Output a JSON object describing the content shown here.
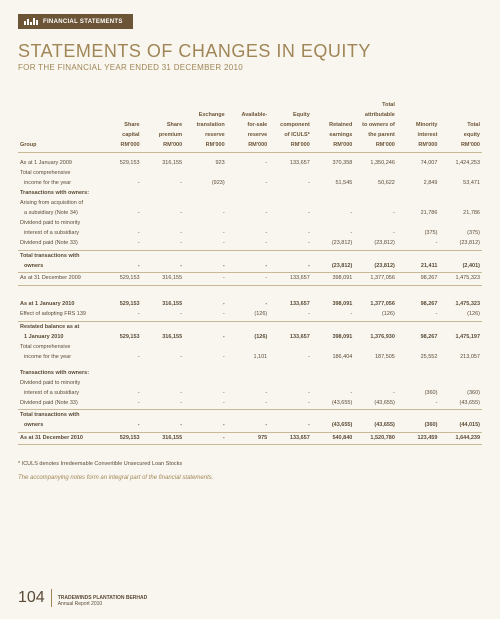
{
  "header": {
    "tab_label": "FINANCIAL STATEMENTS"
  },
  "title": "STATEMENTS OF CHANGES IN EQUITY",
  "subtitle": "FOR THE FINANCIAL YEAR ENDED 31 DECEMBER 2010",
  "table": {
    "group_label": "Group",
    "columns": [
      {
        "l1": "",
        "l2": "Share",
        "l3": "capital",
        "l4": "RM'000"
      },
      {
        "l1": "",
        "l2": "Share",
        "l3": "premium",
        "l4": "RM'000"
      },
      {
        "l1": "Exchange",
        "l2": "translation",
        "l3": "reserve",
        "l4": "RM'000"
      },
      {
        "l1": "Available-",
        "l2": "for-sale",
        "l3": "reserve",
        "l4": "RM'000"
      },
      {
        "l1": "Equity",
        "l2": "component",
        "l3": "of ICULS*",
        "l4": "RM'000"
      },
      {
        "l1": "",
        "l2": "Retained",
        "l3": "earnings",
        "l4": "RM'000"
      },
      {
        "l1": "Total",
        "l2": "attributable",
        "l3": "to owners of",
        "l4": "the parent",
        "l5": "RM'000"
      },
      {
        "l1": "",
        "l2": "Minority",
        "l3": "interest",
        "l4": "RM'000"
      },
      {
        "l1": "",
        "l2": "Total",
        "l3": "equity",
        "l4": "RM'000"
      }
    ],
    "rows": [
      {
        "label": "As at 1 January 2009",
        "v": [
          "529,153",
          "316,155",
          "923",
          "-",
          "133,657",
          "370,358",
          "1,350,246",
          "74,007",
          "1,424,253"
        ]
      },
      {
        "label": "Total comprehensive",
        "wrap": "income for the year",
        "v": [
          "-",
          "-",
          "(923)",
          "-",
          "-",
          "51,545",
          "50,622",
          "2,849",
          "53,471"
        ]
      },
      {
        "section": "Transactions with owners:"
      },
      {
        "label": "Arising from acquisition of",
        "wrap": "a subsidiary (Note 34)",
        "v": [
          "-",
          "-",
          "-",
          "-",
          "-",
          "-",
          "-",
          "21,786",
          "21,786"
        ]
      },
      {
        "label": "Dividend paid to minority",
        "wrap": "interest of a subsidiary",
        "v": [
          "-",
          "-",
          "-",
          "-",
          "-",
          "-",
          "-",
          "(375)",
          "(375)"
        ]
      },
      {
        "label": "Dividend paid (Note 33)",
        "v": [
          "-",
          "-",
          "-",
          "-",
          "-",
          "(23,812)",
          "(23,812)",
          "-",
          "(23,812)"
        ]
      },
      {
        "hr": true
      },
      {
        "label": "Total transactions with",
        "wrap": "owners",
        "bold": true,
        "v": [
          "-",
          "-",
          "-",
          "-",
          "-",
          "(23,812)",
          "(23,812)",
          "21,411",
          "(2,401)"
        ]
      },
      {
        "hr": true
      },
      {
        "label": "As at 31 December 2009",
        "v": [
          "529,153",
          "316,155",
          "-",
          "-",
          "133,657",
          "398,091",
          "1,377,056",
          "98,267",
          "1,475,323"
        ]
      },
      {
        "hr": true
      },
      {
        "spacer": "lg"
      },
      {
        "label": "As at 1 January 2010",
        "bold": true,
        "v": [
          "529,153",
          "316,155",
          "-",
          "-",
          "133,657",
          "398,091",
          "1,377,056",
          "98,267",
          "1,475,323"
        ]
      },
      {
        "label": "Effect of adopting FRS 139",
        "v": [
          "-",
          "-",
          "-",
          "(126)",
          "-",
          "-",
          "(126)",
          "-",
          "(126)"
        ]
      },
      {
        "hr": true
      },
      {
        "label": "Restated balance as at",
        "wrap": "1 January 2010",
        "bold": true,
        "v": [
          "529,153",
          "316,155",
          "-",
          "(126)",
          "133,657",
          "398,091",
          "1,376,930",
          "98,267",
          "1,475,197"
        ]
      },
      {
        "label": "Total comprehensive",
        "wrap": "income for the year",
        "v": [
          "-",
          "-",
          "-",
          "1,101",
          "-",
          "186,404",
          "187,505",
          "25,552",
          "213,057"
        ]
      },
      {
        "spacer": true
      },
      {
        "section": "Transactions with owners:"
      },
      {
        "label": "Dividend paid to minority",
        "wrap": "interest of a subsidiary",
        "v": [
          "-",
          "-",
          "-",
          "-",
          "-",
          "-",
          "-",
          "(360)",
          "(360)"
        ]
      },
      {
        "label": "Dividend paid (Note 33)",
        "v": [
          "-",
          "-",
          "-",
          "-",
          "-",
          "(43,655)",
          "(43,655)",
          "-",
          "(43,655)"
        ]
      },
      {
        "hr": true
      },
      {
        "label": "Total transactions with",
        "wrap": "owners",
        "bold": true,
        "v": [
          "-",
          "-",
          "-",
          "-",
          "-",
          "(43,655)",
          "(43,655)",
          "(360)",
          "(44,015)"
        ]
      },
      {
        "hr": true
      },
      {
        "label": "As at 31 December 2010",
        "bold": true,
        "v": [
          "529,153",
          "316,155",
          "-",
          "975",
          "133,657",
          "540,840",
          "1,520,780",
          "123,459",
          "1,644,239"
        ]
      },
      {
        "hr": true
      }
    ]
  },
  "footnote": "* ICULS denotes Irredeemable Convertible Unsecured Loan Stocks",
  "footnote_italic": "The accompanying notes form an integral part of the financial statements.",
  "footer": {
    "page": "104",
    "line1": "TRADEWINDS PLANTATION BERHAD",
    "line2": "Annual Report 2010"
  },
  "style": {
    "background": "#f9f6f0",
    "header_bg": "#6b5536",
    "title_color": "#a08656",
    "text_color": "#5a4a35",
    "rule_color": "#c9b996"
  }
}
